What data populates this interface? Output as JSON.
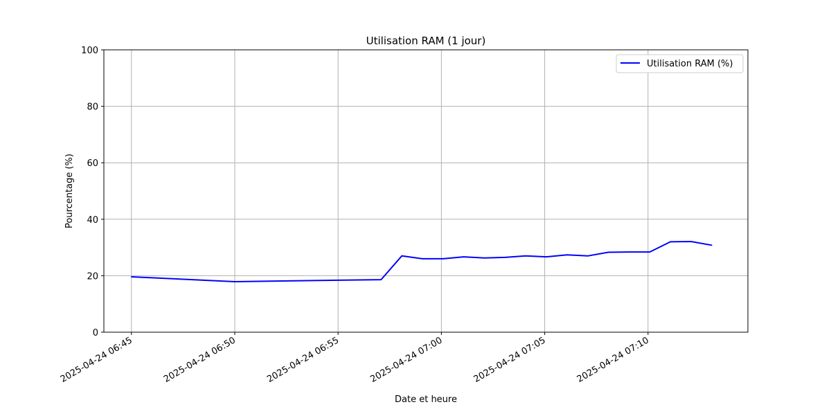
{
  "chart_data": {
    "type": "line",
    "title": "Utilisation RAM (1 jour)",
    "xlabel": "Date et heure",
    "ylabel": "Pourcentage (%)",
    "ylim": [
      0,
      100
    ],
    "yticks": [
      0,
      20,
      40,
      60,
      80,
      100
    ],
    "xlim": [
      "2025-04-24 06:43:40",
      "2025-04-24 07:14:50"
    ],
    "xticks": [
      "2025-04-24 06:45",
      "2025-04-24 06:50",
      "2025-04-24 06:55",
      "2025-04-24 07:00",
      "2025-04-24 07:05",
      "2025-04-24 07:10"
    ],
    "grid": true,
    "legend": {
      "position": "top-right"
    },
    "series": [
      {
        "name": "Utilisation RAM (%)",
        "color": "#0000ff",
        "points": [
          {
            "x": "2025-04-24 06:45:00",
            "y": 19.6
          },
          {
            "x": "2025-04-24 06:50:00",
            "y": 17.9
          },
          {
            "x": "2025-04-24 06:55:00",
            "y": 18.4
          },
          {
            "x": "2025-04-24 06:57:05",
            "y": 18.6
          },
          {
            "x": "2025-04-24 06:58:05",
            "y": 27.0
          },
          {
            "x": "2025-04-24 06:59:05",
            "y": 26.0
          },
          {
            "x": "2025-04-24 07:00:05",
            "y": 26.0
          },
          {
            "x": "2025-04-24 07:01:05",
            "y": 26.7
          },
          {
            "x": "2025-04-24 07:02:05",
            "y": 26.3
          },
          {
            "x": "2025-04-24 07:03:05",
            "y": 26.5
          },
          {
            "x": "2025-04-24 07:04:05",
            "y": 27.0
          },
          {
            "x": "2025-04-24 07:05:05",
            "y": 26.7
          },
          {
            "x": "2025-04-24 07:06:05",
            "y": 27.4
          },
          {
            "x": "2025-04-24 07:07:05",
            "y": 27.0
          },
          {
            "x": "2025-04-24 07:08:05",
            "y": 28.3
          },
          {
            "x": "2025-04-24 07:09:05",
            "y": 28.4
          },
          {
            "x": "2025-04-24 07:10:05",
            "y": 28.4
          },
          {
            "x": "2025-04-24 07:11:05",
            "y": 32.0
          },
          {
            "x": "2025-04-24 07:12:05",
            "y": 32.1
          },
          {
            "x": "2025-04-24 07:13:05",
            "y": 30.8
          }
        ]
      }
    ]
  }
}
